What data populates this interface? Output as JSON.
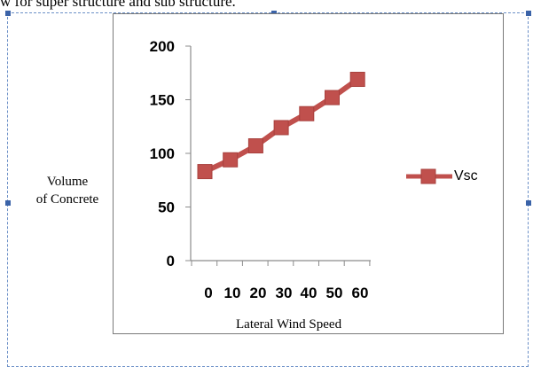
{
  "header_text": "w for super structure and sub structure.",
  "chart_data": {
    "type": "line",
    "x": [
      0,
      10,
      20,
      30,
      40,
      50,
      60
    ],
    "x_ticks": [
      "0",
      "10",
      "20",
      "30",
      "40",
      "50",
      "60"
    ],
    "series": [
      {
        "name": "Vsc",
        "values": [
          83,
          94,
          107,
          124,
          137,
          152,
          169
        ],
        "color": "#c0504d"
      }
    ],
    "ylim": [
      0,
      200
    ],
    "y_ticks": [
      "0",
      "50",
      "100",
      "150",
      "200"
    ],
    "xlabel": "Lateral Wind Speed",
    "ylabel_line1": "Volume",
    "ylabel_line2": "of Concrete",
    "grid": false,
    "legend_position": "right"
  }
}
